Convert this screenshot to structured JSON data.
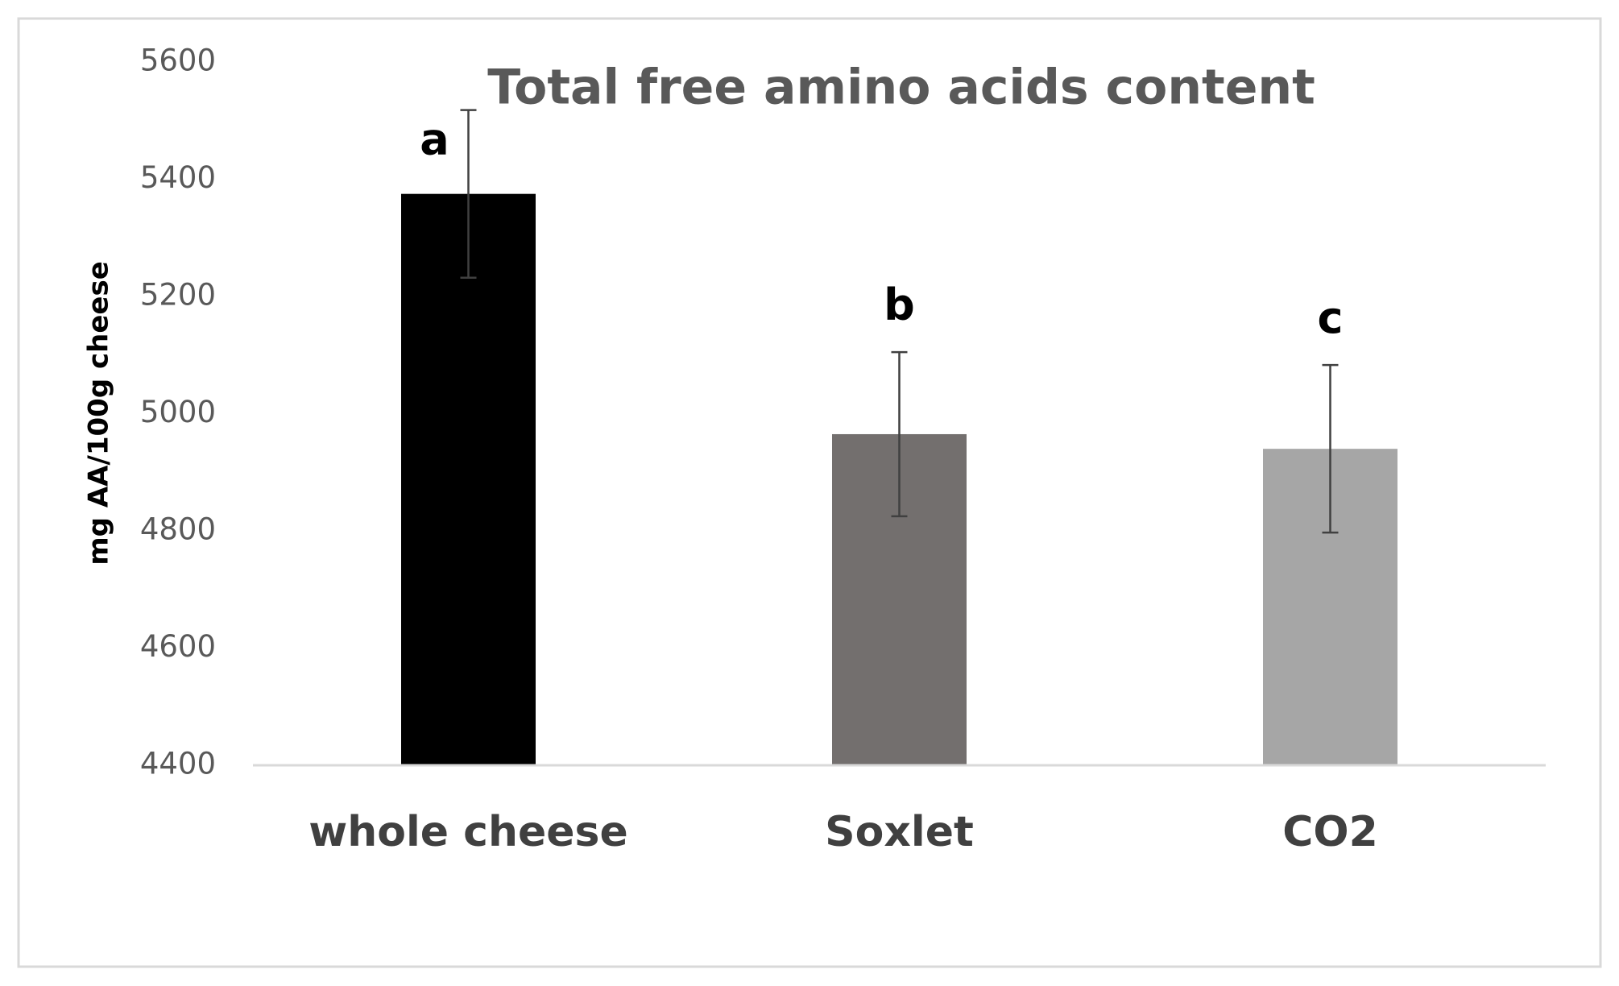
{
  "chart_data": {
    "type": "bar",
    "title": "Total free amino acids content",
    "y_label": "mg AA/100g cheese",
    "categories": [
      "whole cheese",
      "Soxlet",
      "CO2"
    ],
    "values": [
      5375,
      4965,
      4940
    ],
    "errors": [
      143,
      140,
      143
    ],
    "annotations": [
      "a",
      "b",
      "c"
    ],
    "colors": [
      "#000000",
      "#736f6e",
      "#a6a6a6"
    ],
    "ylim": [
      4400,
      5600
    ],
    "yticks": [
      4400,
      4600,
      4800,
      5000,
      5200,
      5400,
      5600
    ],
    "grid": false
  }
}
